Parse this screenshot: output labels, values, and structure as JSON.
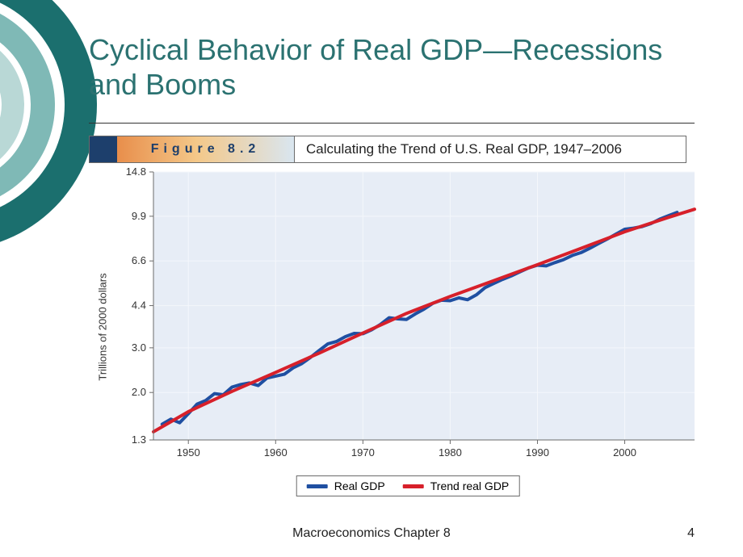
{
  "slide": {
    "title": "Cyclical Behavior of Real GDP—Recessions and Booms",
    "title_color": "#2b7271",
    "title_fontsize": 36,
    "background": "#ffffff"
  },
  "decoration": {
    "outer_ring_color": "#1b6f6e",
    "mid_ring_color": "#7fb9b6",
    "inner_ring_color": "#b9d8d6"
  },
  "figure_bar": {
    "badge_color": "#1d3f6c",
    "label": "Figure 8.2",
    "label_letterspacing": 6,
    "label_gradient": [
      "#e88e4b",
      "#f4c889",
      "#d9e6f0"
    ],
    "title": "Calculating the Trend of U.S. Real GDP, 1947–2006"
  },
  "chart": {
    "type": "line",
    "yscale": "log",
    "ylabel": "Trillions of 2000 dollars",
    "label_fontsize": 13,
    "x_range": [
      1946,
      2008
    ],
    "y_range": [
      1.3,
      14.8
    ],
    "x_ticks": [
      1950,
      1960,
      1970,
      1980,
      1990,
      2000
    ],
    "y_ticks": [
      1.3,
      2.0,
      3.0,
      4.4,
      6.6,
      9.9,
      14.8
    ],
    "plot_background": "#e7edf6",
    "grid_color": "#f4f7fb",
    "axis_color": "#6b6b6b",
    "axis_tick_length": 5,
    "series": [
      {
        "name": "Real GDP",
        "color": "#1f4fa1",
        "width": 4,
        "data": [
          [
            1947,
            1.5
          ],
          [
            1948,
            1.57
          ],
          [
            1949,
            1.52
          ],
          [
            1950,
            1.65
          ],
          [
            1951,
            1.8
          ],
          [
            1952,
            1.86
          ],
          [
            1953,
            1.98
          ],
          [
            1954,
            1.96
          ],
          [
            1955,
            2.1
          ],
          [
            1956,
            2.15
          ],
          [
            1957,
            2.18
          ],
          [
            1958,
            2.13
          ],
          [
            1959,
            2.28
          ],
          [
            1960,
            2.32
          ],
          [
            1961,
            2.36
          ],
          [
            1962,
            2.5
          ],
          [
            1963,
            2.6
          ],
          [
            1964,
            2.75
          ],
          [
            1965,
            2.93
          ],
          [
            1966,
            3.11
          ],
          [
            1967,
            3.18
          ],
          [
            1968,
            3.32
          ],
          [
            1969,
            3.42
          ],
          [
            1970,
            3.41
          ],
          [
            1971,
            3.53
          ],
          [
            1972,
            3.71
          ],
          [
            1973,
            3.94
          ],
          [
            1974,
            3.9
          ],
          [
            1975,
            3.88
          ],
          [
            1976,
            4.08
          ],
          [
            1977,
            4.26
          ],
          [
            1978,
            4.49
          ],
          [
            1979,
            4.62
          ],
          [
            1980,
            4.6
          ],
          [
            1981,
            4.72
          ],
          [
            1982,
            4.64
          ],
          [
            1983,
            4.85
          ],
          [
            1984,
            5.18
          ],
          [
            1985,
            5.38
          ],
          [
            1986,
            5.58
          ],
          [
            1987,
            5.76
          ],
          [
            1988,
            5.98
          ],
          [
            1989,
            6.2
          ],
          [
            1990,
            6.35
          ],
          [
            1991,
            6.31
          ],
          [
            1992,
            6.5
          ],
          [
            1993,
            6.68
          ],
          [
            1994,
            6.94
          ],
          [
            1995,
            7.12
          ],
          [
            1996,
            7.4
          ],
          [
            1997,
            7.72
          ],
          [
            1998,
            8.05
          ],
          [
            1999,
            8.42
          ],
          [
            2000,
            8.8
          ],
          [
            2001,
            8.89
          ],
          [
            2002,
            9.02
          ],
          [
            2003,
            9.26
          ],
          [
            2004,
            9.64
          ],
          [
            2005,
            9.95
          ],
          [
            2006,
            10.25
          ]
        ]
      },
      {
        "name": "Trend real GDP",
        "color": "#d7202a",
        "width": 4,
        "data": [
          [
            1946,
            1.4
          ],
          [
            1950,
            1.68
          ],
          [
            1955,
            2.02
          ],
          [
            1960,
            2.4
          ],
          [
            1965,
            2.86
          ],
          [
            1970,
            3.43
          ],
          [
            1975,
            4.1
          ],
          [
            1980,
            4.78
          ],
          [
            1985,
            5.52
          ],
          [
            1990,
            6.38
          ],
          [
            1995,
            7.4
          ],
          [
            2000,
            8.6
          ],
          [
            2005,
            9.8
          ],
          [
            2008,
            10.55
          ]
        ]
      }
    ],
    "legend": {
      "position": "bottom-center",
      "border_color": "#6b6b6b",
      "items": [
        {
          "label": "Real GDP",
          "color": "#1f4fa1"
        },
        {
          "label": "Trend real GDP",
          "color": "#d7202a"
        }
      ]
    }
  },
  "footer": {
    "center": "Macroeconomics Chapter 8",
    "page": "4"
  }
}
